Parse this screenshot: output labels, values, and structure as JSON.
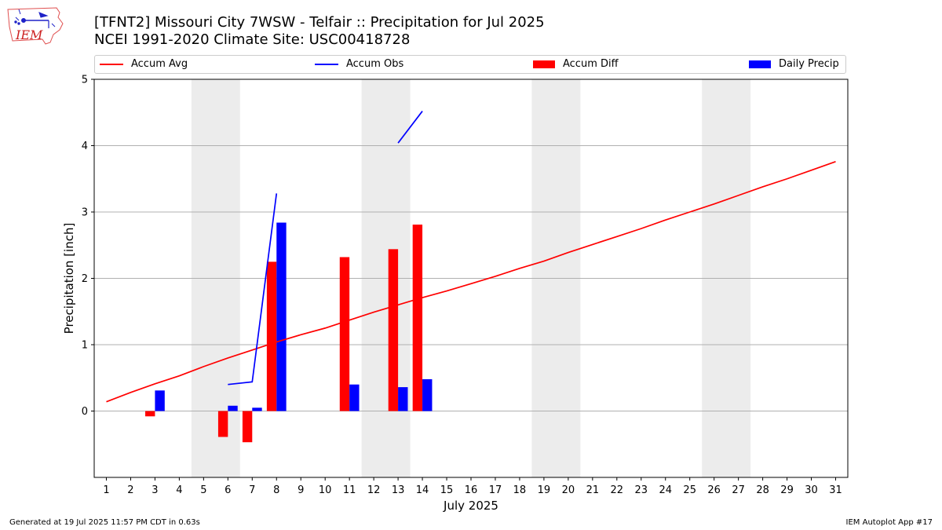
{
  "logo": {
    "text": "IEM"
  },
  "title": {
    "line1": "[TFNT2] Missouri City 7WSW - Telfair :: Precipitation for Jul 2025",
    "line2": "NCEI 1991-2020 Climate Site: USC00418728"
  },
  "legend": {
    "accum_avg": "Accum Avg",
    "accum_obs": "Accum Obs",
    "accum_diff": "Accum Diff",
    "daily_precip": "Daily Precip"
  },
  "colors": {
    "avg": "#ff0000",
    "obs": "#0000ff",
    "diff": "#ff0000",
    "daily": "#0000ff",
    "weekend": "#ececec",
    "grid": "#b0b0b0"
  },
  "footer": {
    "left": "Generated at 19 Jul 2025 11:57 PM CDT in 0.63s",
    "right": "IEM Autoplot App #17"
  },
  "chart_data": {
    "type": "bar",
    "xlabel": "July 2025",
    "ylabel": "Precipitation [inch]",
    "ylim": [
      -1,
      5
    ],
    "yticks": [
      0,
      1,
      2,
      3,
      4,
      5
    ],
    "xlim": [
      0.5,
      31.5
    ],
    "days": [
      1,
      2,
      3,
      4,
      5,
      6,
      7,
      8,
      9,
      10,
      11,
      12,
      13,
      14,
      15,
      16,
      17,
      18,
      19,
      20,
      21,
      22,
      23,
      24,
      25,
      26,
      27,
      28,
      29,
      30,
      31
    ],
    "weekend_spans": [
      [
        5,
        6
      ],
      [
        12,
        13
      ],
      [
        19,
        20
      ],
      [
        26,
        27
      ]
    ],
    "grid": "horizontal",
    "legend_position": "top",
    "series": [
      {
        "name": "Accum Avg",
        "kind": "line",
        "x": [
          1,
          2,
          3,
          4,
          5,
          6,
          7,
          8,
          9,
          10,
          11,
          12,
          13,
          14,
          15,
          16,
          17,
          18,
          19,
          20,
          21,
          22,
          23,
          24,
          25,
          26,
          27,
          28,
          29,
          30,
          31
        ],
        "values": [
          0.14,
          0.28,
          0.41,
          0.53,
          0.67,
          0.8,
          0.92,
          1.04,
          1.15,
          1.25,
          1.37,
          1.49,
          1.6,
          1.71,
          1.81,
          1.92,
          2.03,
          2.15,
          2.26,
          2.39,
          2.51,
          2.63,
          2.75,
          2.88,
          3.0,
          3.12,
          3.25,
          3.38,
          3.5,
          3.63,
          3.76
        ]
      },
      {
        "name": "Accum Obs",
        "kind": "line",
        "segments": [
          {
            "x": [
              6,
              7,
              8
            ],
            "values": [
              0.4,
              0.44,
              3.28
            ]
          },
          {
            "x": [
              13,
              14
            ],
            "values": [
              4.04,
              4.52
            ]
          }
        ]
      },
      {
        "name": "Accum Diff",
        "kind": "bar",
        "offset": -0.2,
        "x": [
          3,
          6,
          7,
          8,
          11,
          13,
          14
        ],
        "values": [
          -0.08,
          -0.39,
          -0.47,
          2.25,
          2.32,
          2.44,
          2.81
        ]
      },
      {
        "name": "Daily Precip",
        "kind": "bar",
        "offset": 0.2,
        "x": [
          3,
          6,
          7,
          8,
          11,
          13,
          14
        ],
        "values": [
          0.31,
          0.08,
          0.05,
          2.84,
          0.4,
          0.36,
          0.48
        ]
      }
    ]
  }
}
